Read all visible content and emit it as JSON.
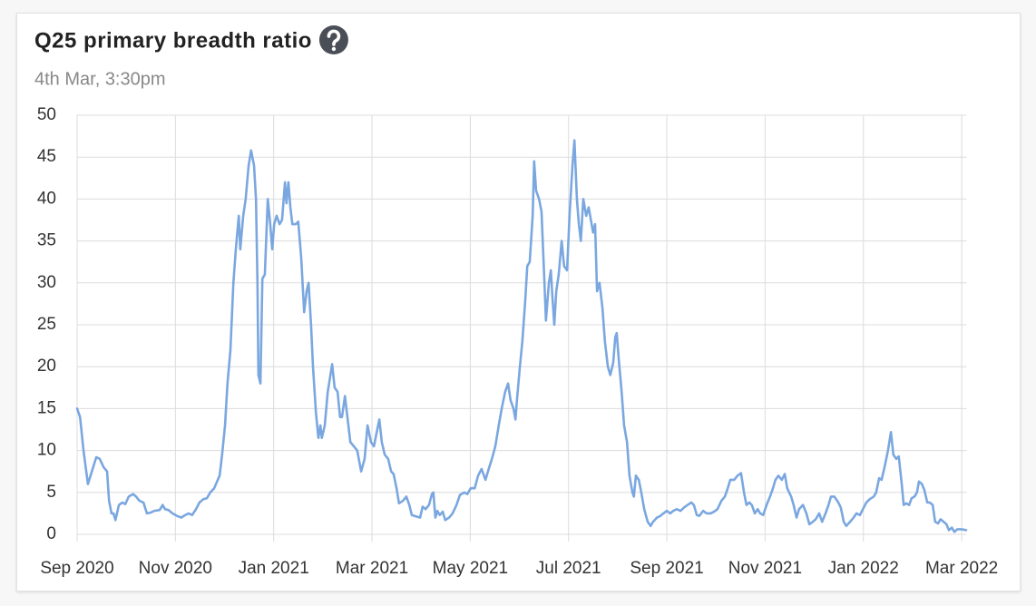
{
  "chart_data": {
    "type": "line",
    "title": "Q25 primary breadth ratio",
    "subtitle": "4th Mar, 3:30pm",
    "xlim": [
      0,
      18.1
    ],
    "xticks": [
      {
        "value": 0,
        "label": "Sep 2020"
      },
      {
        "value": 2,
        "label": "Nov 2020"
      },
      {
        "value": 4,
        "label": "Jan 2021"
      },
      {
        "value": 6,
        "label": "Mar 2021"
      },
      {
        "value": 8,
        "label": "May 2021"
      },
      {
        "value": 10,
        "label": "Jul 2021"
      },
      {
        "value": 12,
        "label": "Sep 2021"
      },
      {
        "value": 14,
        "label": "Nov 2021"
      },
      {
        "value": 16,
        "label": "Jan 2022"
      },
      {
        "value": 18,
        "label": "Mar 2022"
      }
    ],
    "ylim": [
      0,
      50
    ],
    "yticks": [
      0,
      5,
      10,
      15,
      20,
      25,
      30,
      35,
      40,
      45,
      50
    ],
    "grid": true,
    "x": [
      0,
      0.06,
      0.13,
      0.22,
      0.3,
      0.39,
      0.46,
      0.54,
      0.61,
      0.65,
      0.7,
      0.74,
      0.78,
      0.85,
      0.92,
      0.98,
      1.05,
      1.14,
      1.2,
      1.27,
      1.35,
      1.42,
      1.5,
      1.57,
      1.68,
      1.74,
      1.79,
      1.86,
      1.94,
      2.03,
      2.12,
      2.2,
      2.27,
      2.34,
      2.42,
      2.49,
      2.57,
      2.64,
      2.71,
      2.79,
      2.84,
      2.9,
      2.95,
      3.01,
      3.06,
      3.12,
      3.18,
      3.23,
      3.29,
      3.32,
      3.38,
      3.43,
      3.49,
      3.54,
      3.6,
      3.64,
      3.67,
      3.69,
      3.73,
      3.77,
      3.82,
      3.88,
      3.93,
      3.97,
      4.01,
      4.06,
      4.12,
      4.17,
      4.23,
      4.26,
      4.3,
      4.34,
      4.38,
      4.45,
      4.5,
      4.56,
      4.62,
      4.67,
      4.71,
      4.76,
      4.8,
      4.86,
      4.91,
      4.95,
      4.98,
      5.04,
      5.1,
      5.19,
      5.24,
      5.3,
      5.35,
      5.39,
      5.45,
      5.5,
      5.56,
      5.63,
      5.7,
      5.78,
      5.85,
      5.91,
      5.98,
      6.04,
      6.09,
      6.15,
      6.2,
      6.26,
      6.33,
      6.39,
      6.44,
      6.5,
      6.55,
      6.63,
      6.7,
      6.76,
      6.81,
      6.92,
      6.98,
      7.03,
      7.09,
      7.16,
      7.22,
      7.25,
      7.29,
      7.33,
      7.38,
      7.44,
      7.49,
      7.57,
      7.64,
      7.72,
      7.79,
      7.88,
      7.94,
      8.01,
      8.09,
      8.16,
      8.23,
      8.31,
      8.36,
      8.44,
      8.51,
      8.58,
      8.64,
      8.71,
      8.77,
      8.82,
      8.88,
      8.92,
      8.95,
      9.01,
      9.06,
      9.12,
      9.16,
      9.21,
      9.27,
      9.3,
      9.34,
      9.4,
      9.45,
      9.51,
      9.54,
      9.6,
      9.64,
      9.67,
      9.71,
      9.75,
      9.8,
      9.86,
      9.91,
      9.97,
      10.02,
      10.08,
      10.12,
      10.17,
      10.21,
      10.25,
      10.3,
      10.36,
      10.41,
      10.47,
      10.5,
      10.54,
      10.58,
      10.63,
      10.69,
      10.74,
      10.8,
      10.85,
      10.91,
      10.95,
      10.98,
      11.02,
      11.08,
      11.13,
      11.19,
      11.24,
      11.3,
      11.33,
      11.37,
      11.43,
      11.48,
      11.54,
      11.61,
      11.67,
      11.72,
      11.8,
      11.87,
      11.93,
      12,
      12.07,
      12.13,
      12.2,
      12.28,
      12.35,
      12.42,
      12.5,
      12.55,
      12.61,
      12.66,
      12.74,
      12.81,
      12.89,
      12.96,
      13.03,
      13.11,
      13.18,
      13.24,
      13.29,
      13.37,
      13.44,
      13.51,
      13.57,
      13.62,
      13.68,
      13.73,
      13.79,
      13.85,
      13.9,
      13.96,
      14.03,
      14.1,
      14.16,
      14.21,
      14.27,
      14.34,
      14.4,
      14.45,
      14.53,
      14.58,
      14.64,
      14.69,
      14.77,
      14.84,
      14.9,
      14.97,
      15.03,
      15.1,
      15.16,
      15.23,
      15.29,
      15.34,
      15.41,
      15.49,
      15.54,
      15.6,
      15.65,
      15.73,
      15.8,
      15.86,
      15.93,
      15.99,
      16.06,
      16.13,
      16.21,
      16.26,
      16.32,
      16.37,
      16.43,
      16.5,
      16.56,
      16.61,
      16.67,
      16.72,
      16.78,
      16.82,
      16.87,
      16.93,
      16.98,
      17.04,
      17.09,
      17.13,
      17.19,
      17.24,
      17.3,
      17.35,
      17.41,
      17.46,
      17.52,
      17.57,
      17.63,
      17.69,
      17.74,
      17.8,
      17.85,
      17.91,
      18,
      18.09
    ],
    "series": [
      {
        "color": "#7aa7e0",
        "values": [
          15,
          14,
          10,
          6,
          7.5,
          9.2,
          9,
          8,
          7.5,
          4,
          2.5,
          2.5,
          1.7,
          3.5,
          3.8,
          3.6,
          4.5,
          4.8,
          4.5,
          4,
          3.8,
          2.5,
          2.6,
          2.8,
          2.9,
          3.5,
          3,
          2.9,
          2.5,
          2.2,
          2,
          2.3,
          2.5,
          2.3,
          3,
          3.8,
          4.2,
          4.3,
          5,
          5.5,
          6.2,
          7,
          9.5,
          13,
          18,
          22,
          30,
          34,
          38,
          34,
          38,
          40,
          44,
          45.8,
          44,
          40,
          30,
          19,
          18,
          30.5,
          31,
          40,
          37,
          34,
          37,
          38,
          37,
          37.5,
          42,
          39.5,
          42,
          39,
          37,
          37,
          37.3,
          33,
          26.5,
          29,
          30,
          25,
          20,
          14.5,
          11.5,
          13,
          11.5,
          13,
          17,
          20.3,
          17.5,
          17,
          14,
          14,
          16.5,
          14,
          11,
          10.5,
          10,
          7.5,
          9,
          13,
          11,
          10.5,
          12,
          13.7,
          11,
          9.5,
          9,
          7.5,
          7.2,
          5.5,
          3.7,
          4,
          4.5,
          3.5,
          2.3,
          2.1,
          2,
          3.3,
          3,
          3.5,
          4.8,
          5,
          2,
          2.8,
          2.3,
          2.7,
          1.7,
          2,
          2.5,
          3.5,
          4.7,
          5,
          4.8,
          5.5,
          5.5,
          7,
          7.8,
          6.5,
          7.5,
          9,
          10.5,
          13,
          15,
          17,
          18,
          16,
          15,
          13.7,
          16,
          20,
          23,
          28,
          32,
          32.5,
          38,
          44.5,
          41,
          40,
          38.5,
          30,
          25.5,
          30,
          31.5,
          28.5,
          25,
          29,
          31,
          35,
          32,
          31.5,
          38,
          44,
          47,
          40,
          37,
          35,
          40,
          38,
          39,
          37,
          36,
          37,
          29,
          30,
          27,
          23,
          20,
          19,
          20.5,
          23.5,
          24,
          21,
          17,
          13,
          11,
          7,
          5,
          4.5,
          7,
          6.5,
          5,
          3,
          1.5,
          1,
          1.5,
          2,
          2.2,
          2.5,
          2.8,
          2.5,
          2.8,
          3,
          2.8,
          3.2,
          3.5,
          3.8,
          3.5,
          2.3,
          2.2,
          2.8,
          2.5,
          2.5,
          2.7,
          3,
          4,
          4.5,
          5.5,
          6.5,
          6.5,
          7,
          7.3,
          5,
          3.5,
          3.8,
          3.5,
          2.5,
          3,
          2.5,
          2.3,
          3.5,
          4.5,
          5.5,
          6.5,
          7,
          6.5,
          7.2,
          5.5,
          4.5,
          3.5,
          2,
          3,
          3.5,
          2.5,
          1.2,
          1.5,
          1.8,
          2.5,
          1.5,
          2.5,
          3.5,
          4.5,
          4.5,
          3.8,
          3.2,
          1.5,
          1,
          1.5,
          2,
          2.5,
          2.3,
          3,
          3.8,
          4.2,
          4.5,
          5,
          6.7,
          6.5,
          8,
          10,
          12.2,
          9.5,
          9,
          9.3,
          6,
          3.5,
          3.7,
          3.5,
          4.3,
          4.5,
          5,
          6.3,
          6,
          5.3,
          3.8,
          3.8,
          3.5,
          1.5,
          1.3,
          1.8,
          1.5,
          1.2,
          0.5,
          0.8,
          0.3,
          0.6,
          0.6,
          0.5
        ]
      }
    ]
  }
}
